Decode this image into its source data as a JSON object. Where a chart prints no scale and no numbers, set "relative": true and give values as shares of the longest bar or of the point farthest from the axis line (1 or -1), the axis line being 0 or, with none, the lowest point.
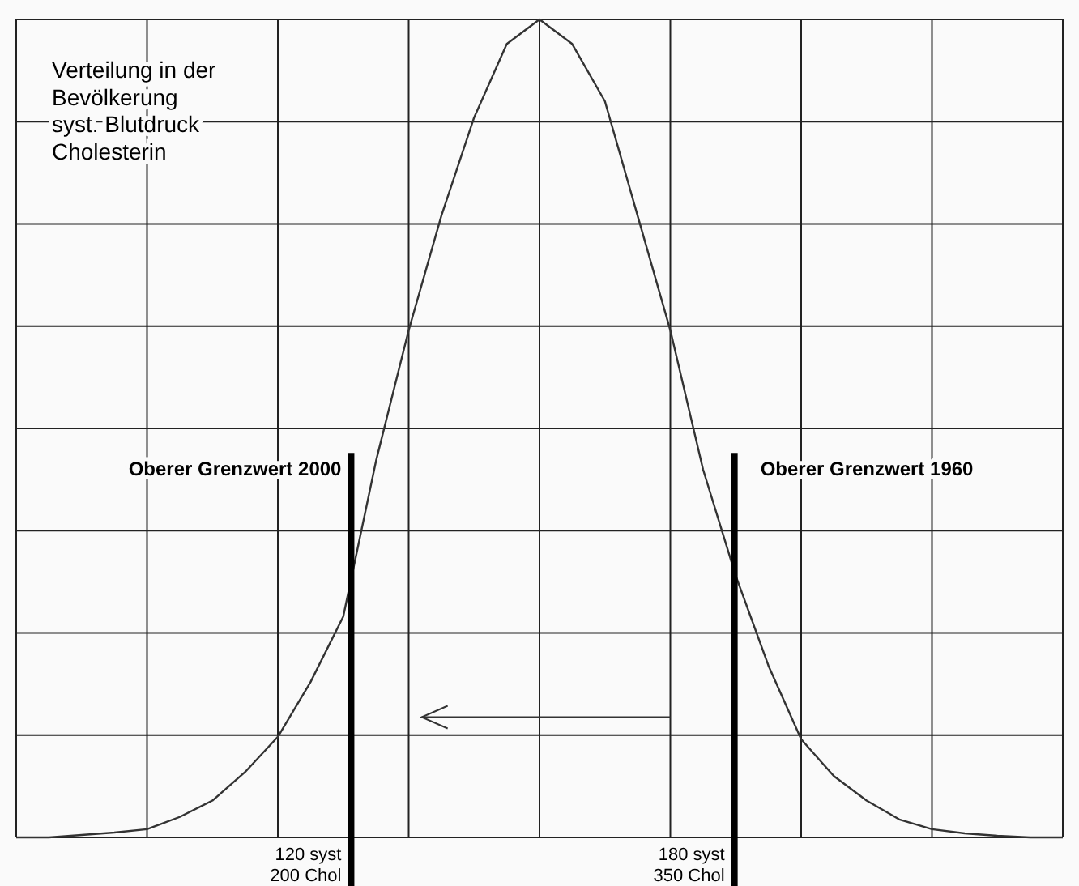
{
  "chart_data": {
    "type": "line",
    "title": "Verteilung in der\nBevölkerung\nsyst. Blutdruck\nCholesterin",
    "relative": true,
    "categories": [
      null,
      null,
      null,
      null,
      null,
      null,
      null,
      null,
      null,
      null,
      null,
      null,
      null,
      null,
      null,
      null,
      null,
      null,
      null,
      null,
      null,
      null,
      null,
      null,
      null,
      null,
      null,
      null,
      null,
      null,
      null,
      null,
      null
    ],
    "series": [
      {
        "color": "#333333",
        "values": [
          0,
          0,
          0.003,
          0.006,
          0.01,
          0.025,
          0.045,
          0.08,
          0.123,
          0.19,
          0.27,
          0.46,
          0.62,
          0.76,
          0.88,
          0.97,
          1.0,
          0.97,
          0.9,
          0.76,
          0.62,
          0.45,
          0.32,
          0.21,
          0.12,
          0.075,
          0.045,
          0.022,
          0.01,
          0.005,
          0.002,
          0,
          0
        ]
      }
    ],
    "grid": true,
    "annotations": [
      "Oberer Grenzwert 2000",
      "Oberer Grenzwert 1960",
      "120 syst\n200 Chol",
      "180 syst\n350 Chol"
    ]
  }
}
